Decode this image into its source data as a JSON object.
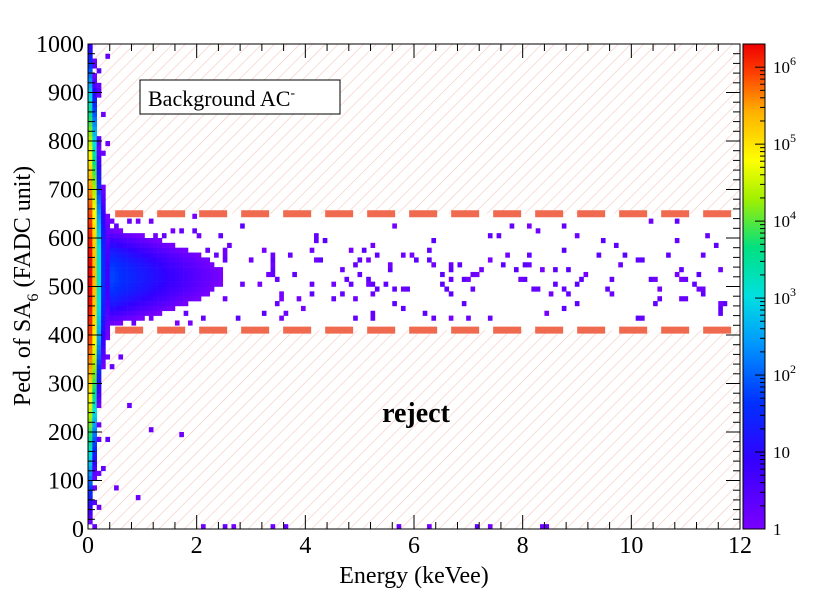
{
  "chart_data": {
    "type": "heatmap",
    "title": "",
    "xlabel": "Energy (keVee)",
    "ylabel_main": "Ped. of SA",
    "ylabel_sub": "6",
    "ylabel_tail": " (FADC unit)",
    "xlim": [
      0,
      12
    ],
    "ylim": [
      0,
      1000
    ],
    "xticks": [
      0,
      2,
      4,
      6,
      8,
      10,
      12
    ],
    "yticks": [
      0,
      100,
      200,
      300,
      400,
      500,
      600,
      700,
      800,
      900,
      1000
    ],
    "legend_box": {
      "text": "Background AC",
      "superscript": "-"
    },
    "cut_lines": [
      {
        "name": "upper-cut",
        "y": 650,
        "color": "#f06a50"
      },
      {
        "name": "lower-cut",
        "y": 410,
        "color": "#f06a50"
      }
    ],
    "reject_label": {
      "text": "reject",
      "color": "#f06a50",
      "x": 6.1,
      "y": 230
    },
    "hatch_color": "#f6c8c0",
    "colorbar": {
      "scale": "log",
      "min": 1,
      "max": 2000000,
      "ticks": [
        {
          "base": "1",
          "exp": "",
          "value": 1
        },
        {
          "base": "10",
          "exp": "",
          "value": 10
        },
        {
          "base": "10",
          "exp": "2",
          "value": 100
        },
        {
          "base": "10",
          "exp": "3",
          "value": 1000
        },
        {
          "base": "10",
          "exp": "4",
          "value": 10000
        },
        {
          "base": "10",
          "exp": "5",
          "value": 100000
        },
        {
          "base": "10",
          "exp": "6",
          "value": 1000000
        }
      ]
    },
    "distribution": {
      "bin_x_kev": 0.08,
      "bin_y": 10,
      "core_center_y": 520,
      "note": "dense core near 0 keVee; sparse band between cuts extending to 12 keVee"
    }
  }
}
